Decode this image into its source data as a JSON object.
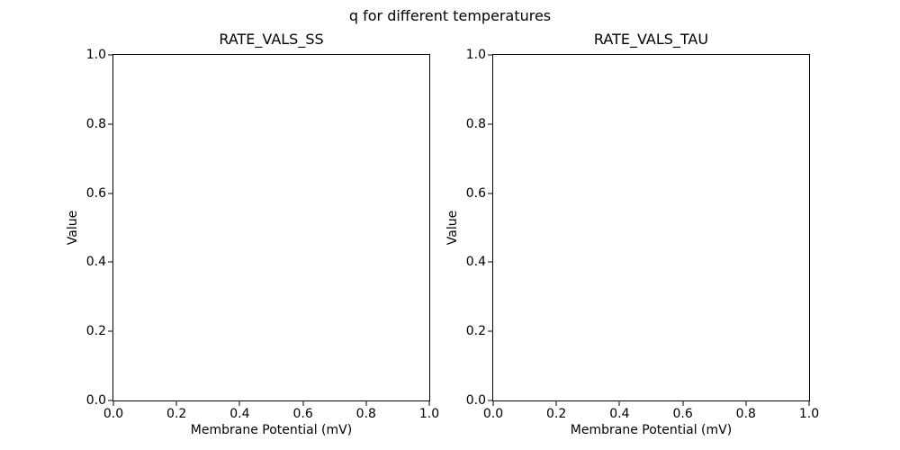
{
  "figure": {
    "suptitle": "q for different temperatures",
    "background_color": "#ffffff",
    "text_color": "#000000",
    "spine_color": "#000000"
  },
  "chart_data": [
    {
      "type": "line",
      "title": "RATE_VALS_SS",
      "xlabel": "Membrane Potential (mV)",
      "ylabel": "Value",
      "xlim": [
        0.0,
        1.0
      ],
      "ylim": [
        0.0,
        1.0
      ],
      "xticks": [
        0.0,
        0.2,
        0.4,
        0.6,
        0.8,
        1.0
      ],
      "yticks": [
        0.0,
        0.2,
        0.4,
        0.6,
        0.8,
        1.0
      ],
      "tick_decimals": 1,
      "grid": false,
      "legend": false,
      "series": []
    },
    {
      "type": "line",
      "title": "RATE_VALS_TAU",
      "xlabel": "Membrane Potential (mV)",
      "ylabel": "Value",
      "xlim": [
        0.0,
        1.0
      ],
      "ylim": [
        0.0,
        1.0
      ],
      "xticks": [
        0.0,
        0.2,
        0.4,
        0.6,
        0.8,
        1.0
      ],
      "yticks": [
        0.0,
        0.2,
        0.4,
        0.6,
        0.8,
        1.0
      ],
      "tick_decimals": 1,
      "grid": false,
      "legend": false,
      "series": []
    }
  ]
}
